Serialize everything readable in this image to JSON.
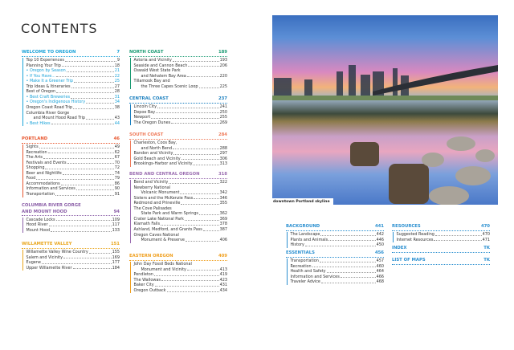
{
  "title": "CONTENTS",
  "photo": {
    "caption": "downtown Portland skyline"
  },
  "sections": [
    {
      "id": "welcome",
      "title": "WELCOME TO OREGON",
      "page": "7",
      "color": "#1ba3d9",
      "items": [
        {
          "lines": [
            "Top 10 Experiences"
          ],
          "page": "9"
        },
        {
          "lines": [
            "Planning Your Trip"
          ],
          "page": "18"
        },
        {
          "lines": [
            "• Oregon by Season"
          ],
          "page": "21",
          "hl": true
        },
        {
          "lines": [
            "• If You Have..."
          ],
          "page": "22",
          "hl": true
        },
        {
          "lines": [
            "• Make It a Greener Trip"
          ],
          "page": "25",
          "hl": true
        },
        {
          "lines": [
            "Trip Ideas & Itineraries"
          ],
          "page": "27"
        },
        {
          "lines": [
            "Best of Oregon"
          ],
          "page": "28"
        },
        {
          "lines": [
            "• Best Craft Breweries"
          ],
          "page": "31",
          "hl": true
        },
        {
          "lines": [
            "• Oregon's Indigenous History"
          ],
          "page": "34",
          "hl": true
        },
        {
          "lines": [
            "Oregon Coast Road Trip"
          ],
          "page": "38"
        },
        {
          "lines": [
            "Columbia River Gorge",
            "and Mount Hood Road Trip"
          ],
          "page": "43"
        },
        {
          "lines": [
            "• Best Hikes"
          ],
          "page": "44",
          "hl": true
        }
      ]
    },
    {
      "id": "portland",
      "title": "PORTLAND",
      "page": "46",
      "color": "#e8572f",
      "items": [
        {
          "lines": [
            "Sights"
          ],
          "page": "49"
        },
        {
          "lines": [
            "Recreation"
          ],
          "page": "62"
        },
        {
          "lines": [
            "The Arts"
          ],
          "page": "67"
        },
        {
          "lines": [
            "Festivals and Events"
          ],
          "page": "70"
        },
        {
          "lines": [
            "Shopping"
          ],
          "page": "72"
        },
        {
          "lines": [
            "Beer and Nightlife"
          ],
          "page": "74"
        },
        {
          "lines": [
            "Food"
          ],
          "page": "79"
        },
        {
          "lines": [
            "Accommodations"
          ],
          "page": "86"
        },
        {
          "lines": [
            "Information and Services"
          ],
          "page": "90"
        },
        {
          "lines": [
            "Transportation"
          ],
          "page": "91"
        }
      ]
    },
    {
      "id": "columbia",
      "title": "COLUMBIA RIVER GORGE\nAND MOUNT HOOD",
      "page": "94",
      "color": "#8b5fa8",
      "items": [
        {
          "lines": [
            "Cascade Locks"
          ],
          "page": "109"
        },
        {
          "lines": [
            "Hood River"
          ],
          "page": "117"
        },
        {
          "lines": [
            "Mount Hood"
          ],
          "page": "133"
        }
      ]
    },
    {
      "id": "willamette",
      "title": "WILLAMETTE VALLEY",
      "page": "151",
      "color": "#e9a61c",
      "items": [
        {
          "lines": [
            "Willamette Valley Wine Country"
          ],
          "page": "155"
        },
        {
          "lines": [
            "Salem and Vicinity"
          ],
          "page": "169"
        },
        {
          "lines": [
            "Eugene"
          ],
          "page": "177"
        },
        {
          "lines": [
            "Upper Willamette River"
          ],
          "page": "184"
        }
      ]
    },
    {
      "id": "northcoast",
      "title": "NORTH COAST",
      "page": "189",
      "color": "#1a9a72",
      "items": [
        {
          "lines": [
            "Astoria and Vicinity"
          ],
          "page": "193"
        },
        {
          "lines": [
            "Seaside and Cannon Beach"
          ],
          "page": "206"
        },
        {
          "lines": [
            "Oswald West State Park",
            "and Nehalem Bay Area"
          ],
          "page": "220"
        },
        {
          "lines": [
            "Tillamook Bay and",
            "the Three Capes Scenic Loop"
          ],
          "page": "225"
        }
      ]
    },
    {
      "id": "centralcoast",
      "title": "CENTRAL COAST",
      "page": "237",
      "color": "#1a7fbf",
      "items": [
        {
          "lines": [
            "Lincoln City"
          ],
          "page": "241"
        },
        {
          "lines": [
            "Depoe Bay"
          ],
          "page": "250"
        },
        {
          "lines": [
            "Newport"
          ],
          "page": "255"
        },
        {
          "lines": [
            "The Oregon Dunes"
          ],
          "page": "269"
        }
      ]
    },
    {
      "id": "southcoast",
      "title": "SOUTH COAST",
      "page": "284",
      "color": "#ef7b5a",
      "items": [
        {
          "lines": [
            "Charleston, Coos Bay,",
            "and North Bend"
          ],
          "page": "288"
        },
        {
          "lines": [
            "Bandon and Vicinity"
          ],
          "page": "297"
        },
        {
          "lines": [
            "Gold Beach and Vicinity"
          ],
          "page": "306"
        },
        {
          "lines": [
            "Brookings-Harbor and Vicinity"
          ],
          "page": "313"
        }
      ]
    },
    {
      "id": "bend",
      "title": "BEND AND CENTRAL OREGON",
      "page": "318",
      "color": "#9a6cb0",
      "items": [
        {
          "lines": [
            "Bend and Vicinity"
          ],
          "page": "322"
        },
        {
          "lines": [
            "Newberry National",
            "Volcanic Monument"
          ],
          "page": "342"
        },
        {
          "lines": [
            "Sisters and the McKenzie Pass"
          ],
          "page": "346"
        },
        {
          "lines": [
            "Redmond and Prineville"
          ],
          "page": "355"
        },
        {
          "lines": [
            "The Cove Palisades",
            "State Park and Warm Springs"
          ],
          "page": "362"
        },
        {
          "lines": [
            "Crater Lake National Park"
          ],
          "page": "369"
        },
        {
          "lines": [
            "Klamath Falls"
          ],
          "page": "378"
        },
        {
          "lines": [
            "Ashland, Medford, and Grants Pass"
          ],
          "page": "387"
        },
        {
          "lines": [
            "Oregon Caves National",
            "Monument & Preserve"
          ],
          "page": "406"
        }
      ]
    },
    {
      "id": "eastern",
      "title": "EASTERN OREGON",
      "page": "409",
      "color": "#f0a020",
      "items": [
        {
          "lines": [
            "John Day Fossil Beds National",
            "Monument and Vicinity"
          ],
          "page": "413"
        },
        {
          "lines": [
            "Pendleton"
          ],
          "page": "419"
        },
        {
          "lines": [
            "The Wallowas"
          ],
          "page": "423"
        },
        {
          "lines": [
            "Baker City"
          ],
          "page": "431"
        },
        {
          "lines": [
            "Oregon Outback"
          ],
          "page": "434"
        }
      ]
    },
    {
      "id": "background",
      "title": "BACKGROUND",
      "page": "441",
      "color": "#2a8fd0",
      "items": [
        {
          "lines": [
            "The Landscape"
          ],
          "page": "442"
        },
        {
          "lines": [
            "Plants and Animals"
          ],
          "page": "446"
        },
        {
          "lines": [
            "History"
          ],
          "page": "450"
        }
      ]
    },
    {
      "id": "essentials",
      "title": "ESSENTIALS",
      "page": "456",
      "color": "#2a8fd0",
      "items": [
        {
          "lines": [
            "Transportation"
          ],
          "page": "457"
        },
        {
          "lines": [
            "Recreation"
          ],
          "page": "460"
        },
        {
          "lines": [
            "Health and Safety"
          ],
          "page": "464"
        },
        {
          "lines": [
            "Information and Services"
          ],
          "page": "466"
        },
        {
          "lines": [
            "Traveler Advice"
          ],
          "page": "468"
        }
      ]
    },
    {
      "id": "resources",
      "title": "RESOURCES",
      "page": "470",
      "color": "#2a8fd0",
      "items": [
        {
          "lines": [
            "Suggested Reading"
          ],
          "page": "470"
        },
        {
          "lines": [
            "Internet Resources"
          ],
          "page": "471"
        }
      ]
    },
    {
      "id": "index",
      "title": "INDEX",
      "page": "TK",
      "color": "#2a8fd0",
      "items": []
    },
    {
      "id": "maps",
      "title": "LIST OF MAPS",
      "page": "TK",
      "color": "#2a8fd0",
      "items": []
    }
  ]
}
